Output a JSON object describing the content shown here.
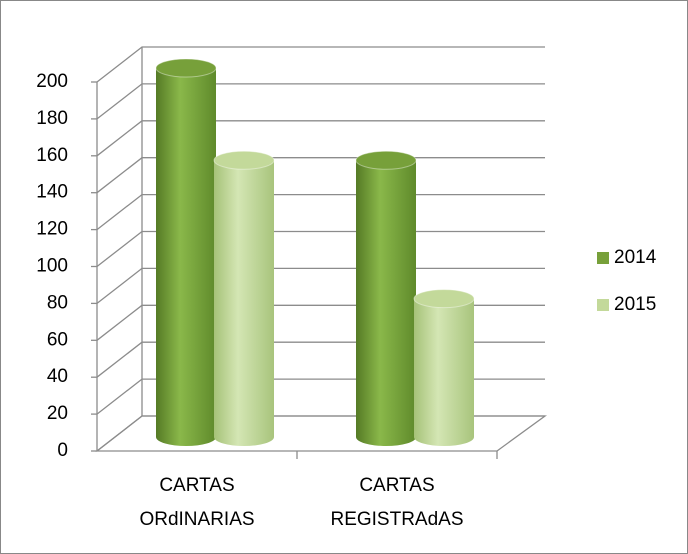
{
  "chart_data": {
    "type": "bar3d",
    "categories": [
      [
        "CARTAS",
        "ORdINARIAS"
      ],
      [
        "CARTAS",
        "REGISTRAdAS"
      ]
    ],
    "series": [
      {
        "name": "2014",
        "color": "#77a03a",
        "values": [
          200,
          150
        ]
      },
      {
        "name": "2015",
        "color": "#c3d99a",
        "values": [
          150,
          75
        ]
      }
    ],
    "ylim": [
      0,
      200
    ],
    "yticks": [
      0,
      20,
      40,
      60,
      80,
      100,
      120,
      140,
      160,
      180,
      200
    ],
    "grid": true,
    "legend": "right"
  }
}
